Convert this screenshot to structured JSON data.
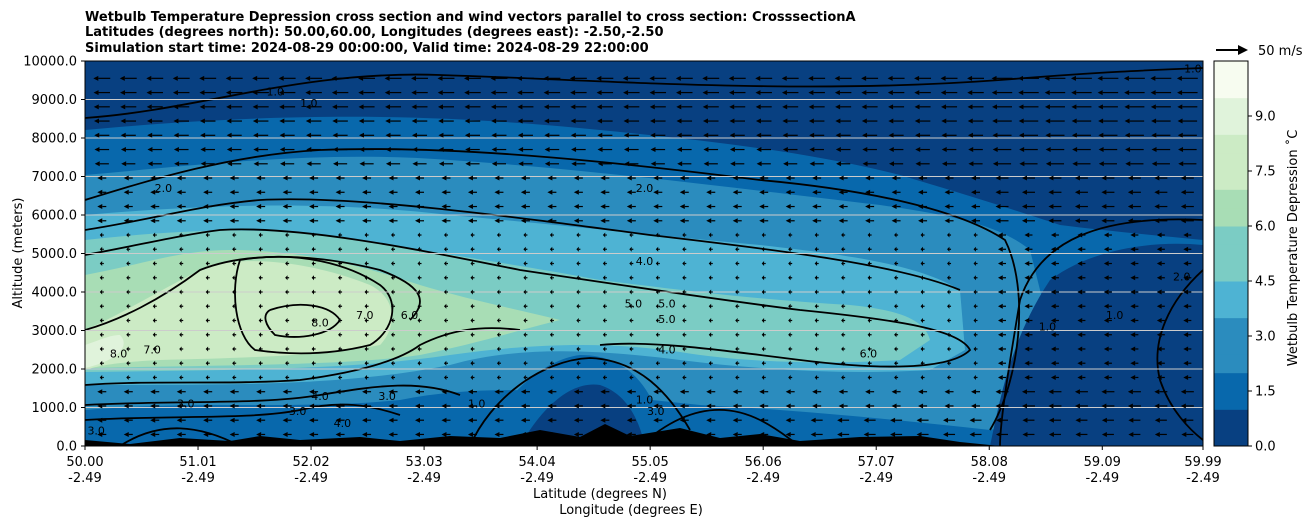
{
  "chart_data": {
    "type": "heatmap",
    "title": [
      "Wetbulb Temperature Depression cross section and wind vectors parallel to cross section: CrosssectionA",
      "Latitudes (degrees north): 50.00,60.00, Longitudes (degrees east): -2.50,-2.50",
      "Simulation start time: 2024-08-29 00:00:00, Valid time: 2024-08-29 22:00:00"
    ],
    "ylabel": "Altitude (meters)",
    "xlabel_lat": "Latitude (degrees N)",
    "xlabel_lon": "Longitude (degrees E)",
    "ylim": [
      0,
      10000
    ],
    "y_ticks": [
      "0.0",
      "1000.0",
      "2000.0",
      "3000.0",
      "4000.0",
      "5000.0",
      "6000.0",
      "7000.0",
      "8000.0",
      "9000.0",
      "10000.0"
    ],
    "x_ticks_lat": [
      "50.00",
      "51.01",
      "52.02",
      "53.03",
      "54.04",
      "55.05",
      "56.06",
      "57.07",
      "58.08",
      "59.09",
      "59.99"
    ],
    "x_ticks_lon": [
      "-2.49",
      "-2.49",
      "-2.49",
      "-2.49",
      "-2.49",
      "-2.49",
      "-2.49",
      "-2.49",
      "-2.49",
      "-2.49",
      "-2.49"
    ],
    "colorbar": {
      "label": "Wetbulb Temperature Depression ˚C",
      "ticks": [
        "0.0",
        "1.5",
        "3.0",
        "4.5",
        "6.0",
        "7.5",
        "9.0"
      ],
      "range": [
        0,
        10.5
      ],
      "colors": [
        "#084081",
        "#0868ac",
        "#2b8cbe",
        "#4eb3d3",
        "#7bccc4",
        "#a8ddb5",
        "#ccebc5",
        "#e0f3db",
        "#f7fcf0"
      ]
    },
    "wind_key": "50 m/s",
    "contour_labels": [
      {
        "text": "1.0",
        "x": 51.7,
        "y": 9100
      },
      {
        "text": "1.0",
        "x": 52.0,
        "y": 8800
      },
      {
        "text": "2.0",
        "x": 50.7,
        "y": 6600
      },
      {
        "text": "2.0",
        "x": 55.0,
        "y": 6600
      },
      {
        "text": "4.0",
        "x": 55.0,
        "y": 4700
      },
      {
        "text": "7.0",
        "x": 52.5,
        "y": 3300
      },
      {
        "text": "8.0",
        "x": 52.1,
        "y": 3100
      },
      {
        "text": "6.0",
        "x": 52.9,
        "y": 3300
      },
      {
        "text": "5.0",
        "x": 54.9,
        "y": 3600
      },
      {
        "text": "5.0",
        "x": 55.2,
        "y": 3600
      },
      {
        "text": "5.0",
        "x": 55.2,
        "y": 3200
      },
      {
        "text": "4.0",
        "x": 55.2,
        "y": 2400
      },
      {
        "text": "6.0",
        "x": 57.0,
        "y": 2300
      },
      {
        "text": "1.0",
        "x": 58.6,
        "y": 3000
      },
      {
        "text": "1.0",
        "x": 59.2,
        "y": 3300
      },
      {
        "text": "2.0",
        "x": 59.8,
        "y": 4300
      },
      {
        "text": "1.0",
        "x": 59.9,
        "y": 9700
      },
      {
        "text": "8.0",
        "x": 50.3,
        "y": 2300
      },
      {
        "text": "7.0",
        "x": 50.6,
        "y": 2400
      },
      {
        "text": "3.0",
        "x": 50.9,
        "y": 1000
      },
      {
        "text": "3.0",
        "x": 51.9,
        "y": 800
      },
      {
        "text": "4.0",
        "x": 52.1,
        "y": 1200
      },
      {
        "text": "3.0",
        "x": 52.7,
        "y": 1200
      },
      {
        "text": "1.0",
        "x": 53.5,
        "y": 1000
      },
      {
        "text": "1.0",
        "x": 55.0,
        "y": 1100
      },
      {
        "text": "3.0",
        "x": 55.1,
        "y": 800
      },
      {
        "text": "4.0",
        "x": 52.3,
        "y": 500
      },
      {
        "text": "3.0",
        "x": 50.1,
        "y": 300
      }
    ]
  }
}
